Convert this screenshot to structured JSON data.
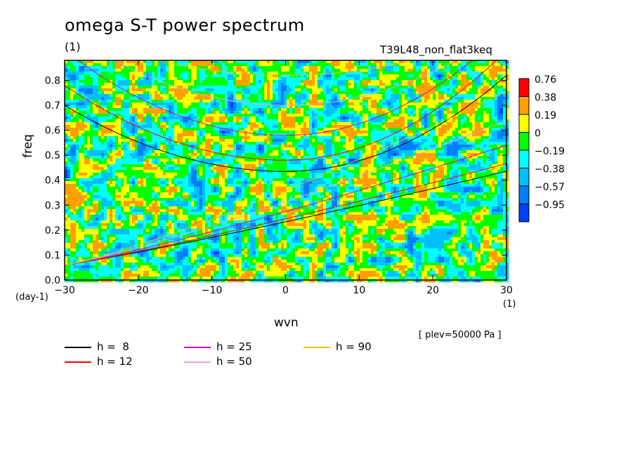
{
  "header": {
    "title": "omega S-T power spectrum",
    "title_unit": "(1)",
    "run_label": "T39L48_non_flat3keq"
  },
  "footer": {
    "plev_label": "[ plev=50000 Pa ]"
  },
  "legend": [
    {
      "label": "h =  8",
      "color": "#000000"
    },
    {
      "label": "h = 12",
      "color": "#ff0000"
    },
    {
      "label": "h = 25",
      "color": "#e000c0"
    },
    {
      "label": "h = 50",
      "color": "#e8a0e0"
    },
    {
      "label": "h = 90",
      "color": "#f0c000"
    }
  ],
  "colorbar": [
    {
      "label": "0.76",
      "color": "#ff0000"
    },
    {
      "label": "0.38",
      "color": "#ffa000"
    },
    {
      "label": "0.19",
      "color": "#ffff00"
    },
    {
      "label": "0",
      "color": "#00ff00"
    },
    {
      "label": "−0.19",
      "color": "#00ffff"
    },
    {
      "label": "−0.38",
      "color": "#00c0ff"
    },
    {
      "label": "−0.57",
      "color": "#0080ff"
    },
    {
      "label": "−0.95",
      "color": "#0040ff"
    }
  ],
  "chart_data": {
    "type": "heatmap",
    "title": "omega S-T power spectrum",
    "xlabel": "wvn",
    "xunit": "(1)",
    "ylabel": "freq",
    "yunit": "(day-1)",
    "xlim": [
      -30,
      30
    ],
    "ylim": [
      0,
      0.88
    ],
    "xticks": [
      -30,
      -20,
      -10,
      0,
      10,
      20,
      30
    ],
    "xtick_labels": [
      "−30",
      "−20",
      "−10",
      "0",
      "10",
      "20",
      "30"
    ],
    "yticks": [
      0,
      0.1,
      0.2,
      0.3,
      0.4,
      0.5,
      0.6,
      0.7,
      0.8
    ],
    "ytick_labels": [
      "0.0",
      "0.1",
      "0.2",
      "0.3",
      "0.4",
      "0.5",
      "0.6",
      "0.7",
      "0.8"
    ],
    "contour_levels": [
      -0.95,
      -0.57,
      -0.38,
      -0.19,
      0,
      0.19,
      0.38,
      0.76
    ],
    "field_description_values": "noisy normalized spectral power, mostly between -0.19 and 0.38",
    "dispersion_curves": [
      {
        "name": "h = 8",
        "h": 8,
        "color": "#000000"
      },
      {
        "name": "h = 12",
        "h": 12,
        "color": "#ff0000"
      },
      {
        "name": "h = 25",
        "h": 25,
        "color": "#e000c0"
      },
      {
        "name": "h = 50",
        "h": 50,
        "color": "#e8a0e0"
      },
      {
        "name": "h = 90",
        "h": 90,
        "color": "#f0c000"
      }
    ]
  }
}
